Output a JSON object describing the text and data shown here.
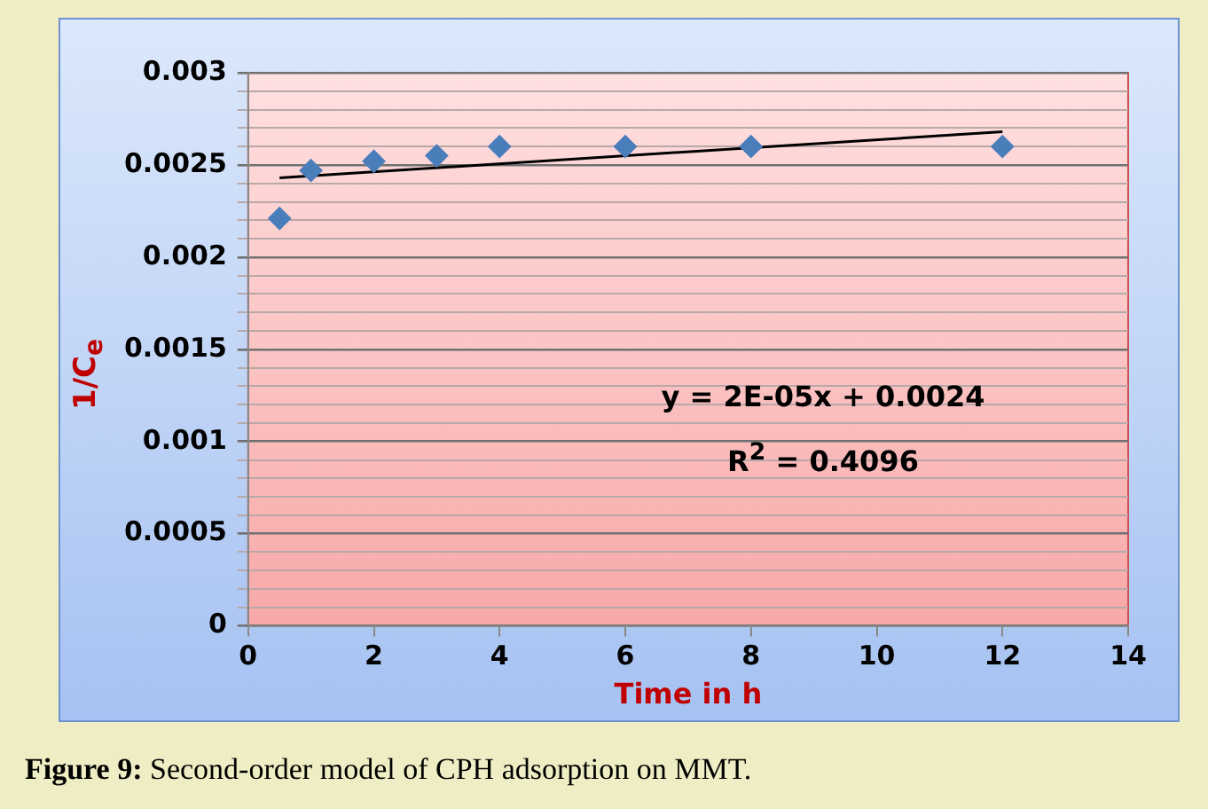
{
  "chart_data": {
    "type": "scatter",
    "xlabel": "Time in h",
    "ylabel": "1/C$_{e}$",
    "x": [
      0.5,
      1,
      2,
      3,
      4,
      6,
      8,
      12
    ],
    "series": [
      {
        "type": "scatter",
        "color": "#4a7ebb",
        "marker": "diamond",
        "values": [
          0.00221,
          0.00247,
          0.00252,
          0.00255,
          0.0026,
          0.0026,
          0.0026,
          0.0026
        ]
      },
      {
        "type": "line",
        "color": "#000000",
        "marker": "none",
        "x": [
          0.5,
          12
        ],
        "values": [
          0.00243,
          0.00268
        ]
      }
    ],
    "xlim": [
      0,
      14
    ],
    "xticks": [
      0,
      2,
      4,
      6,
      8,
      10,
      12,
      14
    ],
    "ylim": [
      0,
      0.003
    ],
    "yticks": [
      0,
      {
        "value": 0.0001,
        "label": null
      },
      {
        "value": 0.0002,
        "label": null
      },
      {
        "value": 0.0003,
        "label": null
      },
      {
        "value": 0.0004,
        "label": null
      },
      0.0005,
      {
        "value": 0.0006,
        "label": null
      },
      {
        "value": 0.0007,
        "label": null
      },
      {
        "value": 0.0008,
        "label": null
      },
      {
        "value": 0.0009,
        "label": null
      },
      0.001,
      {
        "value": 0.0011,
        "label": null
      },
      {
        "value": 0.0012,
        "label": null
      },
      {
        "value": 0.0013,
        "label": null
      },
      {
        "value": 0.0014,
        "label": null
      },
      0.0015,
      {
        "value": 0.0016,
        "label": null
      },
      {
        "value": 0.0017,
        "label": null
      },
      {
        "value": 0.0018,
        "label": null
      },
      {
        "value": 0.0019,
        "label": null
      },
      0.002,
      {
        "value": 0.0021,
        "label": null
      },
      {
        "value": 0.0022,
        "label": null
      },
      {
        "value": 0.0023,
        "label": null
      },
      {
        "value": 0.0024,
        "label": null
      },
      0.0025,
      {
        "value": 0.0026,
        "label": null
      },
      {
        "value": 0.0027,
        "label": null
      },
      {
        "value": 0.0028,
        "label": null
      },
      {
        "value": 0.0029,
        "label": null
      },
      0.003
    ],
    "grid": "y",
    "legend": false,
    "annotations": [
      "y = 2E-05x + 0.0024",
      "R$^{2}$ = 0.4096",
      "Figure 9: Second-order model of CPH adsorption on MMT."
    ]
  }
}
